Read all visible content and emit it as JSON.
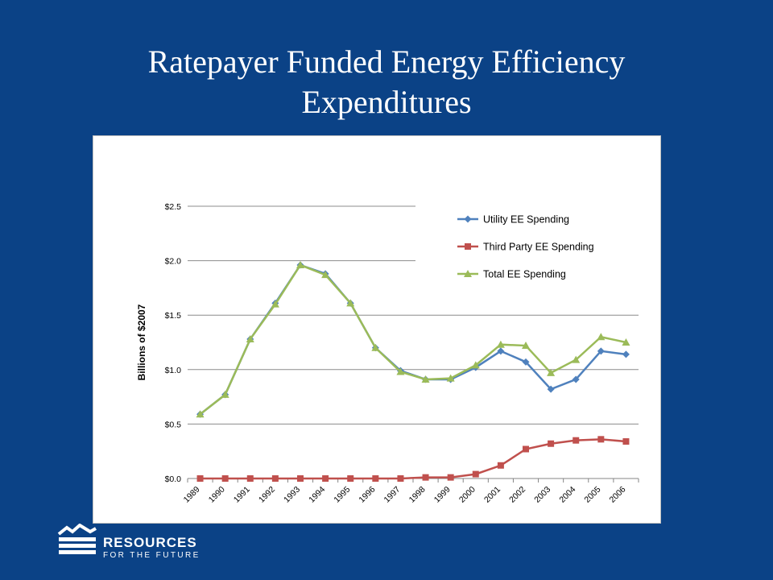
{
  "slide": {
    "title_line1": "Ratepayer Funded Energy Efficiency",
    "title_line2": "Expenditures"
  },
  "logo": {
    "line1": "RESOURCES",
    "line2": "FOR THE FUTURE",
    "icon": "mountain-waves-icon"
  },
  "colors": {
    "background": "#0b4286",
    "utility": "#4f81bd",
    "third_party": "#c0504d",
    "total": "#9bbb59"
  },
  "chart_data": {
    "type": "line",
    "ylabel": "Billions of $2007",
    "ylim": [
      0,
      2.5
    ],
    "yticks": [
      "$0.0",
      "$0.5",
      "$1.0",
      "$1.5",
      "$2.0",
      "$2.5"
    ],
    "ytick_values": [
      0,
      0.5,
      1.0,
      1.5,
      2.0,
      2.5
    ],
    "grid": true,
    "legend": "top-right",
    "categories": [
      "1989",
      "1990",
      "1991",
      "1992",
      "1993",
      "1994",
      "1995",
      "1996",
      "1997",
      "1998",
      "1999",
      "2000",
      "2001",
      "2002",
      "2003",
      "2004",
      "2005",
      "2006"
    ],
    "series": [
      {
        "name": "Utility EE Spending",
        "marker": "diamond",
        "values": [
          0.59,
          0.77,
          1.28,
          1.61,
          1.96,
          1.88,
          1.61,
          1.2,
          0.99,
          0.91,
          0.91,
          1.02,
          1.17,
          1.07,
          0.82,
          0.91,
          1.17,
          1.14
        ]
      },
      {
        "name": "Third Party EE Spending",
        "marker": "square",
        "values": [
          0.0,
          0.0,
          0.0,
          0.0,
          0.0,
          0.0,
          0.0,
          0.0,
          0.0,
          0.01,
          0.01,
          0.04,
          0.12,
          0.27,
          0.32,
          0.35,
          0.36,
          0.34
        ]
      },
      {
        "name": "Total EE Spending",
        "marker": "triangle",
        "values": [
          0.59,
          0.77,
          1.28,
          1.6,
          1.96,
          1.87,
          1.61,
          1.2,
          0.98,
          0.91,
          0.92,
          1.04,
          1.23,
          1.22,
          0.97,
          1.09,
          1.3,
          1.25
        ]
      }
    ]
  }
}
